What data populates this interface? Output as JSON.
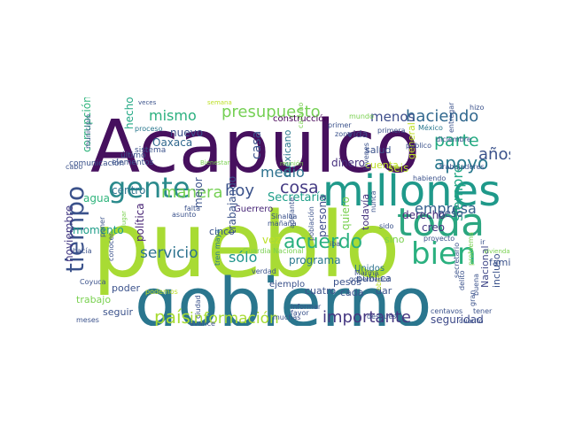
{
  "words": [
    {
      "text": "pueblo",
      "color": "#a8db34"
    },
    {
      "text": "Acapulco",
      "color": "#46105e"
    },
    {
      "text": "gobierno",
      "color": "#2a768e"
    },
    {
      "text": "millones",
      "color": "#1f998a"
    },
    {
      "text": "toda",
      "color": "#2ba680"
    },
    {
      "text": "bien",
      "color": "#2ab07f"
    },
    {
      "text": "gente",
      "color": "#2a8a8c"
    },
    {
      "text": "tiempo",
      "color": "#3b528b"
    },
    {
      "text": "Guerrero",
      "color": "#482777"
    },
    {
      "text": "acuerdo",
      "color": "#2ab07f"
    },
    {
      "text": "país",
      "color": "#a8db34"
    },
    {
      "text": "importante",
      "color": "#453781"
    },
    {
      "text": "información",
      "color": "#a8db34"
    },
    {
      "text": "presupuesto",
      "color": "#75d054"
    },
    {
      "text": "mismo",
      "color": "#2bb07f"
    },
    {
      "text": "haciendo",
      "color": "#31688e"
    },
    {
      "text": "menos",
      "color": "#3d4d8a"
    },
    {
      "text": "apoyo",
      "color": "#2a788e"
    },
    {
      "text": "parte",
      "color": "#25ab82"
    },
    {
      "text": "años",
      "color": "#3b528b"
    },
    {
      "text": "empresa",
      "color": "#35608d"
    },
    {
      "text": "cosa",
      "color": "#443a83"
    },
    {
      "text": "medio",
      "color": "#2d718e"
    },
    {
      "text": "hoy",
      "color": "#3b528b"
    },
    {
      "text": "manera",
      "color": "#75d054"
    },
    {
      "text": "servicio",
      "color": "#2c728e"
    },
    {
      "text": "sólo",
      "color": "#1f948c"
    },
    {
      "text": "siempre",
      "color": "#22a785"
    },
    {
      "text": "Nacional",
      "color": "#3f4788"
    },
    {
      "text": "incluso",
      "color": "#3b528b"
    },
    {
      "text": "seguridad",
      "color": "#3e4a89"
    },
    {
      "text": "corrupción",
      "color": "#2fb47c"
    },
    {
      "text": "noviembre",
      "color": "#443983"
    },
    {
      "text": "vida",
      "color": "#404688"
    },
    {
      "text": "construcción",
      "color": "#440154"
    },
    {
      "text": "nuevo",
      "color": "#3b528b"
    },
    {
      "text": "Oaxaca",
      "color": "#31688e"
    },
    {
      "text": "casa",
      "color": "#3b528b"
    },
    {
      "text": "dinero",
      "color": "#46307e"
    },
    {
      "text": "cuenta",
      "color": "#bddf26"
    },
    {
      "text": "Secretaría",
      "color": "#1f9e89"
    },
    {
      "text": "persona",
      "color": "#3e4c8a"
    },
    {
      "text": "todavía",
      "color": "#46337f"
    },
    {
      "text": "derecho",
      "color": "#472c7a"
    },
    {
      "text": "creo",
      "color": "#453781"
    },
    {
      "text": "peso",
      "color": "#3b528b"
    },
    {
      "text": "programa",
      "color": "#2a788e"
    },
    {
      "text": "cinco",
      "color": "#3b528b"
    },
    {
      "text": "vez",
      "color": "#bddf26"
    },
    {
      "text": "trabajando",
      "color": "#3b528b"
    },
    {
      "text": "política",
      "color": "#482475"
    },
    {
      "text": "centro",
      "color": "#2c728e"
    },
    {
      "text": "mejor",
      "color": "#3b528b"
    },
    {
      "text": "agua",
      "color": "#2fb47c"
    },
    {
      "text": "momento",
      "color": "#1f9e89"
    },
    {
      "text": "cuatro",
      "color": "#3b528b"
    },
    {
      "text": "pesos",
      "color": "#3b528b"
    },
    {
      "text": "cada",
      "color": "#3b528b"
    },
    {
      "text": "dar",
      "color": "#3b528b"
    },
    {
      "text": "poder",
      "color": "#3b528b"
    },
    {
      "text": "trabajo",
      "color": "#7ad151"
    },
    {
      "text": "seguir",
      "color": "#3b528b"
    },
    {
      "text": "familia",
      "color": "#3b528b"
    },
    {
      "text": "pública",
      "color": "#3b528b"
    },
    {
      "text": "ejemplo",
      "color": "#3b528b"
    },
    {
      "text": "Unidos",
      "color": "#2c728e"
    },
    {
      "text": "mexicano",
      "color": "#2a788e"
    },
    {
      "text": "hecho",
      "color": "#22a884"
    },
    {
      "text": "salud",
      "color": "#3b528b"
    },
    {
      "text": "general",
      "color": "#bddf26"
    },
    {
      "text": "seis",
      "color": "#b5de2b"
    },
    {
      "text": "quiero",
      "color": "#7ad151"
    },
    {
      "text": "sino",
      "color": "#7ad151"
    },
    {
      "text": "elementos",
      "color": "#3b528b"
    },
    {
      "text": "comunicación",
      "color": "#3b528b"
    },
    {
      "text": "sistema",
      "color": "#3b528b"
    },
    {
      "text": "último",
      "color": "#3b528b"
    },
    {
      "text": "municipio",
      "color": "#3b528b"
    },
    {
      "text": "proceso",
      "color": "#2a788e"
    },
    {
      "text": "México",
      "color": "#2a788e"
    },
    {
      "text": "primer",
      "color": "#3b528b"
    },
    {
      "text": "zona",
      "color": "#3b528b"
    },
    {
      "text": "camino",
      "color": "#7ad151"
    },
    {
      "text": "mundo",
      "color": "#7ad151"
    },
    {
      "text": "primera",
      "color": "#3b528b"
    },
    {
      "text": "público",
      "color": "#3b528b"
    },
    {
      "text": "diciembre",
      "color": "#3b528b"
    },
    {
      "text": "entregar",
      "color": "#3b528b"
    },
    {
      "text": "hizo",
      "color": "#3b528b"
    },
    {
      "text": "jóvenes",
      "color": "#3b528b"
    },
    {
      "text": "veces",
      "color": "#3b528b"
    },
    {
      "text": "semana",
      "color": "#bddf26"
    },
    {
      "text": "cabo",
      "color": "#3b528b"
    },
    {
      "text": "Bienestar",
      "color": "#7ad151"
    },
    {
      "text": "reunión",
      "color": "#7ad151"
    },
    {
      "text": "trabajadores",
      "color": "#3b528b"
    },
    {
      "text": "habiendo",
      "color": "#3b528b"
    },
    {
      "text": "hacía",
      "color": "#3b528b"
    },
    {
      "text": "lugar",
      "color": "#7ad151"
    },
    {
      "text": "falta",
      "color": "#3b528b"
    },
    {
      "text": "asunto",
      "color": "#3b528b"
    },
    {
      "text": "Sinaloa",
      "color": "#3b528b"
    },
    {
      "text": "mañana",
      "color": "#3b528b"
    },
    {
      "text": "adelante",
      "color": "#3b528b"
    },
    {
      "text": "población",
      "color": "#3b528b"
    },
    {
      "text": "nunca",
      "color": "#3b528b"
    },
    {
      "text": "sido",
      "color": "#3b528b"
    },
    {
      "text": "iba",
      "color": "#3b528b"
    },
    {
      "text": "proyecto",
      "color": "#3b528b"
    },
    {
      "text": "Marina",
      "color": "#3b528b"
    },
    {
      "text": "gobernador",
      "color": "#3b528b"
    },
    {
      "text": "secretario",
      "color": "#3b528b"
    },
    {
      "text": "problema",
      "color": "#7ad151"
    },
    {
      "text": "delito",
      "color": "#3b528b"
    },
    {
      "text": "buena",
      "color": "#3b528b"
    },
    {
      "text": "ir",
      "color": "#3b528b"
    },
    {
      "text": "conocer",
      "color": "#3b528b"
    },
    {
      "text": "Coyuca",
      "color": "#3b528b"
    },
    {
      "text": "meses",
      "color": "#3b528b"
    },
    {
      "text": "podemos",
      "color": "#bddf26"
    },
    {
      "text": "ciudad",
      "color": "#3b528b"
    },
    {
      "text": "avance",
      "color": "#3b528b"
    },
    {
      "text": "muchas",
      "color": "#3b528b"
    },
    {
      "text": "informar",
      "color": "#3b528b"
    },
    {
      "text": "favor",
      "color": "#3b528b"
    },
    {
      "text": "después",
      "color": "#3b528b"
    },
    {
      "text": "obra",
      "color": "#bddf26"
    },
    {
      "text": "centavos",
      "color": "#3b528b"
    },
    {
      "text": "cuanto",
      "color": "#3b528b"
    },
    {
      "text": "gran",
      "color": "#3b528b"
    },
    {
      "text": "vivienda",
      "color": "#7ad151"
    },
    {
      "text": "tren maya",
      "color": "#2a788e"
    },
    {
      "text": "verdad",
      "color": "#3b528b"
    },
    {
      "text": "poner",
      "color": "#3b528b"
    },
    {
      "text": "tener",
      "color": "#3b528b"
    },
    {
      "text": "Guardia Nacional",
      "color": "#7ad151"
    }
  ]
}
